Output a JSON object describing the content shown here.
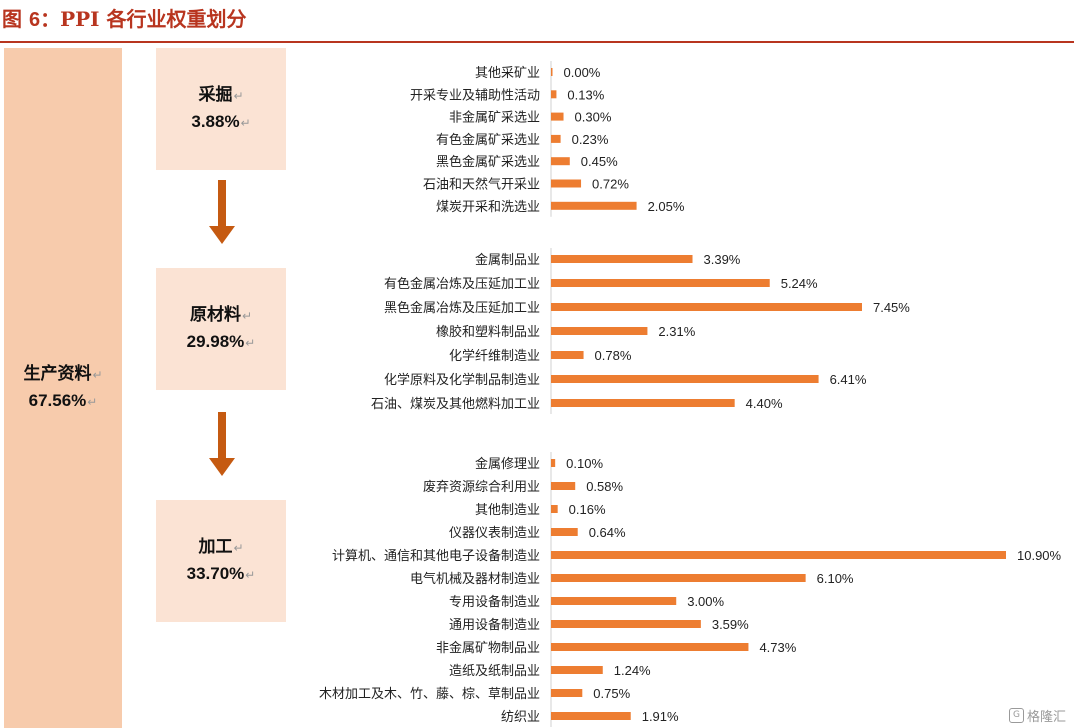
{
  "figure": {
    "title_prefix": "图",
    "title_num": "6",
    "title_sep": "：",
    "title_text": "PPI 各行业权重划分"
  },
  "left_box": {
    "name": "生产资料",
    "value": "67.56%"
  },
  "groups": [
    {
      "name": "采掘",
      "value": "3.88%"
    },
    {
      "name": "原材料",
      "value": "29.98%"
    },
    {
      "name": "加工",
      "value": "33.70%"
    }
  ],
  "watermark": {
    "icon": "G",
    "text": "格隆汇"
  },
  "colors": {
    "bar": "#ed7d31",
    "title": "#b8351f",
    "big_box": "#f7cbac",
    "small_box": "#fbe3d4",
    "arrow": "#c55a11"
  },
  "chart_data": {
    "type": "bar",
    "orientation": "horizontal",
    "title": "",
    "xlabel": "",
    "ylabel": "",
    "unit": "%",
    "xlim": [
      0,
      11
    ],
    "groups": [
      {
        "name": "采掘",
        "categories": [
          "其他采矿业",
          "开采专业及辅助性活动",
          "非金属矿采选业",
          "有色金属矿采选业",
          "黑色金属矿采选业",
          "石油和天然气开采业",
          "煤炭开采和洗选业"
        ],
        "values": [
          0.0,
          0.13,
          0.3,
          0.23,
          0.45,
          0.72,
          2.05
        ],
        "labels": [
          "0.00%",
          "0.13%",
          "0.30%",
          "0.23%",
          "0.45%",
          "0.72%",
          "2.05%"
        ]
      },
      {
        "name": "原材料",
        "categories": [
          "金属制品业",
          "有色金属冶炼及压延加工业",
          "黑色金属冶炼及压延加工业",
          "橡胶和塑料制品业",
          "化学纤维制造业",
          "化学原料及化学制品制造业",
          "石油、煤炭及其他燃料加工业"
        ],
        "values": [
          3.39,
          5.24,
          7.45,
          2.31,
          0.78,
          6.41,
          4.4
        ],
        "labels": [
          "3.39%",
          "5.24%",
          "7.45%",
          "2.31%",
          "0.78%",
          "6.41%",
          "4.40%"
        ]
      },
      {
        "name": "加工",
        "categories": [
          "金属修理业",
          "废弃资源综合利用业",
          "其他制造业",
          "仪器仪表制造业",
          "计算机、通信和其他电子设备制造业",
          "电气机械及器材制造业",
          "专用设备制造业",
          "通用设备制造业",
          "非金属矿物制品业",
          "造纸及纸制品业",
          "木材加工及木、竹、藤、棕、草制品业",
          "纺织业"
        ],
        "values": [
          0.1,
          0.58,
          0.16,
          0.64,
          10.9,
          6.1,
          3.0,
          3.59,
          4.73,
          1.24,
          0.75,
          1.91
        ],
        "labels": [
          "0.10%",
          "0.58%",
          "0.16%",
          "0.64%",
          "10.90%",
          "6.10%",
          "3.00%",
          "3.59%",
          "4.73%",
          "1.24%",
          "0.75%",
          "1.91%"
        ]
      }
    ]
  }
}
